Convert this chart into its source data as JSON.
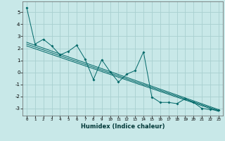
{
  "xlabel": "Humidex (Indice chaleur)",
  "ylabel": "",
  "background_color": "#c8e8e8",
  "grid_color": "#a8d0d0",
  "line_color": "#006868",
  "xlim": [
    -0.5,
    23.5
  ],
  "ylim": [
    -3.6,
    5.9
  ],
  "xticks": [
    0,
    1,
    2,
    3,
    4,
    5,
    6,
    7,
    8,
    9,
    10,
    11,
    12,
    13,
    14,
    15,
    16,
    17,
    18,
    19,
    20,
    21,
    22,
    23
  ],
  "yticks": [
    -3,
    -2,
    -1,
    0,
    1,
    2,
    3,
    4,
    5
  ],
  "scatter_x": [
    0,
    1,
    2,
    3,
    4,
    5,
    6,
    7,
    8,
    9,
    10,
    11,
    12,
    13,
    14,
    15,
    16,
    17,
    18,
    19,
    20,
    21,
    22,
    23
  ],
  "scatter_y": [
    5.4,
    2.35,
    2.75,
    2.2,
    1.45,
    1.75,
    2.25,
    1.1,
    -0.6,
    1.05,
    0.05,
    -0.8,
    -0.15,
    0.15,
    1.7,
    -2.05,
    -2.5,
    -2.5,
    -2.6,
    -2.2,
    -2.5,
    -3.0,
    -3.1,
    -3.15
  ],
  "line1_x": [
    0,
    23
  ],
  "line1_y": [
    2.5,
    -3.1
  ],
  "line2_x": [
    0,
    23
  ],
  "line2_y": [
    2.2,
    -3.25
  ],
  "line3_x": [
    0,
    23
  ],
  "line3_y": [
    2.35,
    -3.18
  ]
}
